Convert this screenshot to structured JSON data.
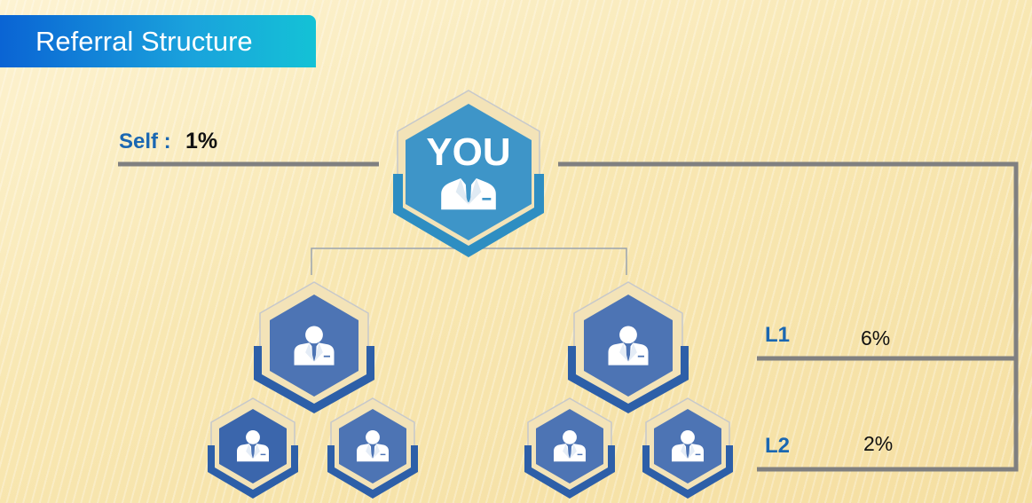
{
  "header": {
    "title": "Referral Structure"
  },
  "self": {
    "label": "Self :",
    "value": "1%"
  },
  "you_node": {
    "label": "YOU"
  },
  "levels": [
    {
      "name": "L1",
      "rate": "6%"
    },
    {
      "name": "L2",
      "rate": "2%"
    }
  ],
  "icons": {
    "you": "businessman-icon",
    "referral": "person-icon"
  },
  "colors": {
    "title_banner": "#0a64d4",
    "you_hex": "#3e95c8",
    "referral_hex": "#4d74b4",
    "label_blue": "#1a67b2",
    "connector": "#808080"
  }
}
